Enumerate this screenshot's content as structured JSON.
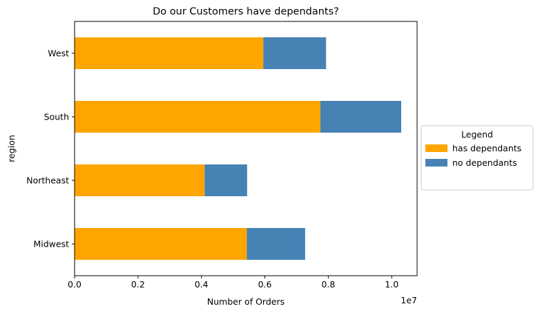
{
  "chart_data": {
    "type": "bar",
    "orientation": "horizontal",
    "stacked": true,
    "title": "Do our Customers have dependants?",
    "xlabel": "Number of Orders",
    "ylabel": "region",
    "x_scale_label": "1e7",
    "xlim": [
      0,
      10800000
    ],
    "x_ticks": [
      0,
      2000000,
      4000000,
      6000000,
      8000000,
      10000000
    ],
    "x_tick_labels": [
      "0.0",
      "0.2",
      "0.4",
      "0.6",
      "0.8",
      "1.0"
    ],
    "categories": [
      "Midwest",
      "Northeast",
      "South",
      "West"
    ],
    "series": [
      {
        "name": "has dependants",
        "color": "#ffa500",
        "values": [
          5430000,
          4100000,
          7750000,
          5950000
        ]
      },
      {
        "name": "no dependants",
        "color": "#4682b4",
        "values": [
          1840000,
          1340000,
          2550000,
          1980000
        ]
      }
    ],
    "grid": false,
    "legend": {
      "title": "Legend",
      "placement": "right-outside"
    }
  }
}
